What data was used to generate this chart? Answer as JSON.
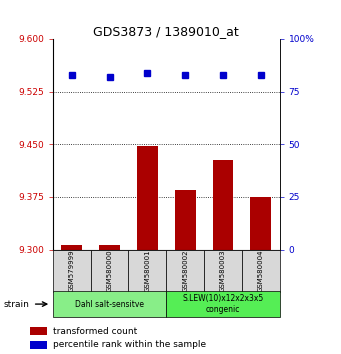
{
  "title": "GDS3873 / 1389010_at",
  "samples": [
    "GSM579999",
    "GSM580000",
    "GSM580001",
    "GSM580002",
    "GSM580003",
    "GSM580004"
  ],
  "transformed_counts": [
    9.306,
    9.306,
    9.447,
    9.385,
    9.427,
    9.375
  ],
  "percentile_ranks": [
    83,
    82,
    84,
    83,
    83,
    83
  ],
  "ylim_left": [
    9.3,
    9.6
  ],
  "ylim_right": [
    0,
    100
  ],
  "yticks_left": [
    9.3,
    9.375,
    9.45,
    9.525,
    9.6
  ],
  "yticks_right": [
    0,
    25,
    50,
    75,
    100
  ],
  "bar_color": "#aa0000",
  "dot_color": "#0000cc",
  "base_value": 9.3,
  "groups": [
    {
      "label": "Dahl salt-sensitve",
      "start": 0,
      "end": 3,
      "color": "#88ee88"
    },
    {
      "label": "S.LEW(10)x12x2x3x5\ncongenic",
      "start": 3,
      "end": 6,
      "color": "#55ee55"
    }
  ],
  "legend_items": [
    {
      "color": "#aa0000",
      "label": "transformed count"
    },
    {
      "color": "#0000cc",
      "label": "percentile rank within the sample"
    }
  ],
  "tick_label_color_left": "#cc0000",
  "tick_label_color_right": "#0000cc",
  "sample_box_color": "#d8d8d8",
  "plot_bg": "#ffffff"
}
